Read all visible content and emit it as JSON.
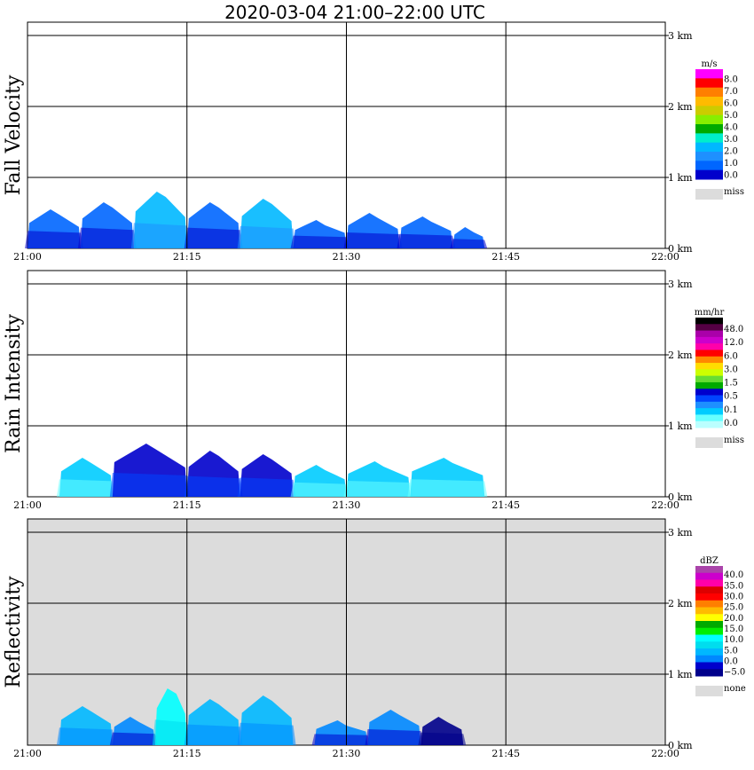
{
  "title": "2020-03-04   21:00–22:00 UTC",
  "x_ticks": [
    "21:00",
    "21:15",
    "21:30",
    "21:45",
    "22:00"
  ],
  "y_ticks": [
    "0 km",
    "1 km",
    "2 km",
    "3 km"
  ],
  "colors": {
    "background_white": "#ffffff",
    "background_gray": "#dcdcdc",
    "grid": "#000000"
  },
  "chart_data": [
    {
      "type": "heatmap",
      "title": "Fall Velocity",
      "ylabel": "Fall Velocity",
      "xlabel": "",
      "xlim": [
        "21:00",
        "22:00"
      ],
      "ylim_km": [
        0,
        3.2
      ],
      "grid": true,
      "background": "#ffffff",
      "legend": {
        "unit": "m/s",
        "position": "right",
        "colors": [
          "#ff00ff",
          "#ff0000",
          "#ff7f00",
          "#ffbb00",
          "#cccc00",
          "#88ee00",
          "#00aa00",
          "#00eecc",
          "#00b8ff",
          "#1e90ff",
          "#0066ff",
          "#0000cc"
        ],
        "labels": [
          "8.0",
          "7.0",
          "6.0",
          "5.0",
          "4.0",
          "3.0",
          "2.0",
          "1.0",
          "0.0"
        ],
        "miss_label": "miss"
      },
      "echoes": [
        {
          "start": "21:00",
          "end": "21:05",
          "top_km": 0.55,
          "level": "1.0"
        },
        {
          "start": "21:05",
          "end": "21:10",
          "top_km": 0.65,
          "level": "1.0"
        },
        {
          "start": "21:10",
          "end": "21:15",
          "top_km": 0.8,
          "level": "2.0"
        },
        {
          "start": "21:15",
          "end": "21:20",
          "top_km": 0.65,
          "level": "1.0"
        },
        {
          "start": "21:20",
          "end": "21:25",
          "top_km": 0.7,
          "level": "2.0"
        },
        {
          "start": "21:25",
          "end": "21:30",
          "top_km": 0.4,
          "level": "1.0"
        },
        {
          "start": "21:30",
          "end": "21:35",
          "top_km": 0.5,
          "level": "1.0"
        },
        {
          "start": "21:35",
          "end": "21:40",
          "top_km": 0.45,
          "level": "1.0"
        },
        {
          "start": "21:40",
          "end": "21:43",
          "top_km": 0.3,
          "level": "1.0"
        }
      ]
    },
    {
      "type": "heatmap",
      "title": "Rain Intensity",
      "ylabel": "Rain Intensity",
      "xlabel": "",
      "xlim": [
        "21:00",
        "22:00"
      ],
      "ylim_km": [
        0,
        3.2
      ],
      "grid": true,
      "background": "#ffffff",
      "legend": {
        "unit": "mm/hr",
        "position": "right",
        "colors": [
          "#000000",
          "#550044",
          "#aa00aa",
          "#cc00cc",
          "#ff00aa",
          "#ff0000",
          "#ff8800",
          "#ffdd00",
          "#ccff00",
          "#66dd33",
          "#00aa00",
          "#0000cc",
          "#0044ff",
          "#1e90ff",
          "#00ccff",
          "#66ffff",
          "#bbffff"
        ],
        "labels": [
          "48.0",
          "12.0",
          "6.0",
          "3.0",
          "1.5",
          "0.5",
          "0.1",
          "0.0"
        ],
        "miss_label": "miss"
      },
      "echoes": [
        {
          "start": "21:03",
          "end": "21:08",
          "top_km": 0.55,
          "level": "0.1"
        },
        {
          "start": "21:08",
          "end": "21:15",
          "top_km": 0.75,
          "level": "0.5"
        },
        {
          "start": "21:15",
          "end": "21:20",
          "top_km": 0.65,
          "level": "0.5"
        },
        {
          "start": "21:20",
          "end": "21:25",
          "top_km": 0.6,
          "level": "0.5"
        },
        {
          "start": "21:25",
          "end": "21:30",
          "top_km": 0.45,
          "level": "0.1"
        },
        {
          "start": "21:30",
          "end": "21:36",
          "top_km": 0.5,
          "level": "0.1"
        },
        {
          "start": "21:36",
          "end": "21:43",
          "top_km": 0.55,
          "level": "0.1"
        }
      ]
    },
    {
      "type": "heatmap",
      "title": "Reflectivity",
      "ylabel": "Reflectivity",
      "xlabel": "",
      "xlim": [
        "21:00",
        "22:00"
      ],
      "ylim_km": [
        0,
        3.2
      ],
      "grid": true,
      "background": "#dcdcdc",
      "legend": {
        "unit": "dBZ",
        "position": "right",
        "colors": [
          "#aa44aa",
          "#cc00cc",
          "#ff00aa",
          "#dd0000",
          "#ff0000",
          "#ff7f00",
          "#ffbb00",
          "#ffff00",
          "#00aa00",
          "#00ee00",
          "#00ffff",
          "#00ddee",
          "#00b8ff",
          "#0088ff",
          "#0000cc",
          "#00008b"
        ],
        "labels": [
          "40.0",
          "35.0",
          "30.0",
          "25.0",
          "20.0",
          "15.0",
          "10.0",
          "5.0",
          "0.0",
          "−5.0"
        ],
        "miss_label": "none"
      },
      "echoes": [
        {
          "start": "21:03",
          "end": "21:08",
          "top_km": 0.55,
          "level": "5.0"
        },
        {
          "start": "21:08",
          "end": "21:12",
          "top_km": 0.4,
          "level": "0.0"
        },
        {
          "start": "21:12",
          "end": "21:15",
          "top_km": 0.8,
          "level": "10.0"
        },
        {
          "start": "21:15",
          "end": "21:20",
          "top_km": 0.65,
          "level": "5.0"
        },
        {
          "start": "21:20",
          "end": "21:25",
          "top_km": 0.7,
          "level": "5.0"
        },
        {
          "start": "21:27",
          "end": "21:32",
          "top_km": 0.35,
          "level": "0.0"
        },
        {
          "start": "21:32",
          "end": "21:37",
          "top_km": 0.5,
          "level": "0.0"
        },
        {
          "start": "21:37",
          "end": "21:41",
          "top_km": 0.4,
          "level": "-5.0"
        }
      ]
    }
  ]
}
